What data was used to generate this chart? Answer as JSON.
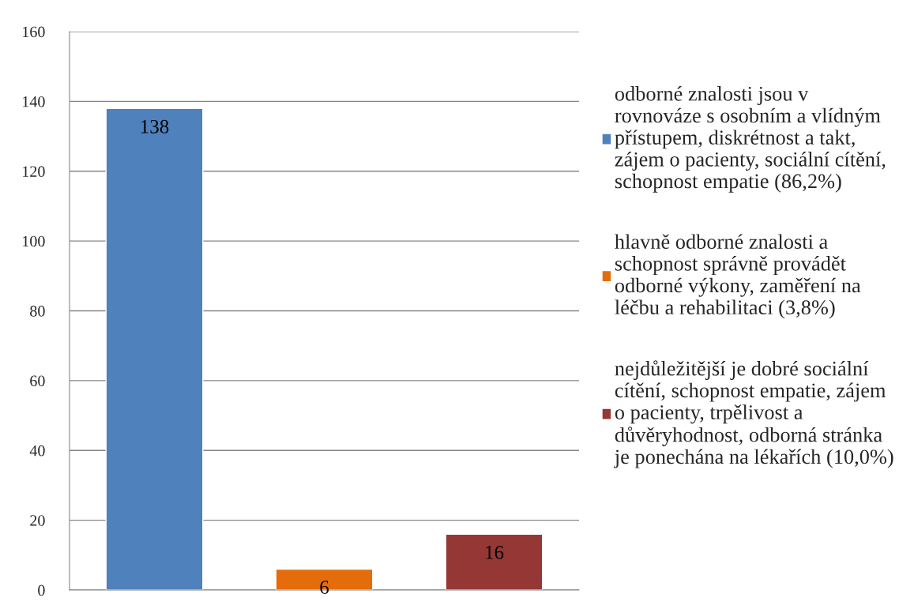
{
  "chart_data": {
    "type": "bar",
    "categories": [
      null,
      null,
      null
    ],
    "series": [
      {
        "name": "odborné znalosti jsou v rovnováze s osobním a vlídným přístupem, diskrétnost a takt, zájem o pacienty, sociální cítění, schopnost empatie (86,2%)",
        "color": "#4f81bd",
        "values": [
          138,
          null,
          null
        ]
      },
      {
        "name": "hlavně odborné znalosti a schopnost správně provádět odborné výkony, zaměření na léčbu a rehabilitaci (3,8%)",
        "color": "#e46c0a",
        "values": [
          null,
          6,
          null
        ]
      },
      {
        "name": "nejdůležitější je dobré sociální cítění, schopnost empatie, zájem o pacienty, trpělivost a důvěryhodnost, odborná stránka je ponechána na lékařích (10,0%)",
        "color": "#953735",
        "values": [
          null,
          null,
          16
        ]
      }
    ],
    "ylim": [
      0,
      160
    ],
    "yticks": [
      0,
      20,
      40,
      60,
      80,
      100,
      120,
      140,
      160
    ],
    "grid": "y",
    "legend": "right",
    "data_labels": true
  }
}
